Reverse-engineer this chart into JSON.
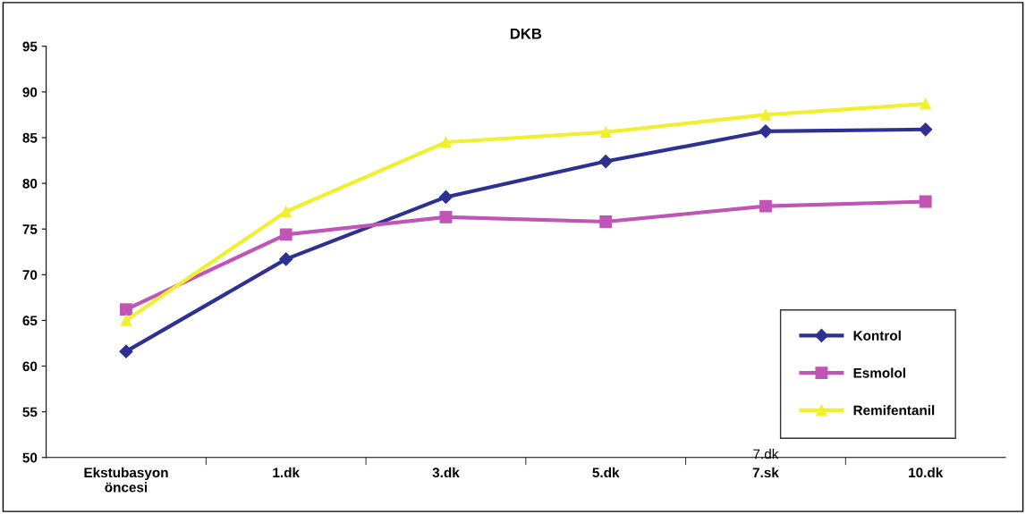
{
  "chart_data": {
    "type": "line",
    "title": "DKB",
    "categories": [
      "Ekstubasyon\nöncesi",
      "1.dk",
      "3.dk",
      "5.dk",
      "7.sk",
      "10.dk"
    ],
    "series": [
      {
        "name": "Kontrol",
        "color": "#2e3192",
        "marker": "diamond",
        "values": [
          61.6,
          71.7,
          78.5,
          82.4,
          85.7,
          85.9
        ]
      },
      {
        "name": "Esmolol",
        "color": "#c155b5",
        "marker": "square",
        "values": [
          66.2,
          74.4,
          76.3,
          75.8,
          77.5,
          78.0
        ]
      },
      {
        "name": "Remifentanil",
        "color": "#f0f030",
        "marker": "triangle",
        "values": [
          65.0,
          76.9,
          84.5,
          85.6,
          87.5,
          88.7
        ]
      }
    ],
    "ylim": [
      50,
      95
    ],
    "yticks": [
      50,
      55,
      60,
      65,
      70,
      75,
      80,
      85,
      90,
      95
    ],
    "grid": false,
    "legend": "bottom right",
    "line_style": "solid",
    "annotations": [
      "7.dk"
    ]
  }
}
